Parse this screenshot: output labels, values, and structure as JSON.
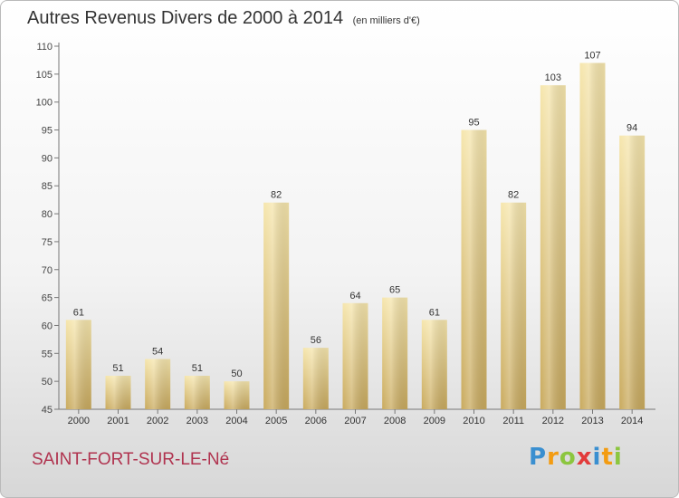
{
  "chart_data": {
    "type": "bar",
    "title": "Autres Revenus Divers de 2000 à 2014",
    "subtitle": "(en milliers d'€)",
    "categories": [
      "2000",
      "2001",
      "2002",
      "2003",
      "2004",
      "2005",
      "2006",
      "2007",
      "2008",
      "2009",
      "2010",
      "2011",
      "2012",
      "2013",
      "2014"
    ],
    "values": [
      61,
      51,
      54,
      51,
      50,
      82,
      56,
      64,
      65,
      61,
      95,
      82,
      103,
      107,
      94
    ],
    "ylim": [
      45,
      110
    ],
    "yticks": [
      45,
      50,
      55,
      60,
      65,
      70,
      75,
      80,
      85,
      90,
      95,
      100,
      105,
      110
    ],
    "grid": false,
    "data_labels": true,
    "bar_color": "#e3c77e",
    "bar_color_light": "#f6e6ad",
    "bar_color_dark": "#c9aa5e"
  },
  "footer": {
    "commune": "SAINT-FORT-SUR-LE-Né",
    "commune_color": "#b0334f"
  },
  "logo": {
    "letters": [
      "P",
      "r",
      "o",
      "x",
      "i",
      "t",
      "i"
    ],
    "colors": [
      "#3a8fd0",
      "#f39c12",
      "#8cc63f",
      "#e23b3b",
      "#3a8fd0",
      "#f39c12",
      "#8cc63f"
    ]
  }
}
